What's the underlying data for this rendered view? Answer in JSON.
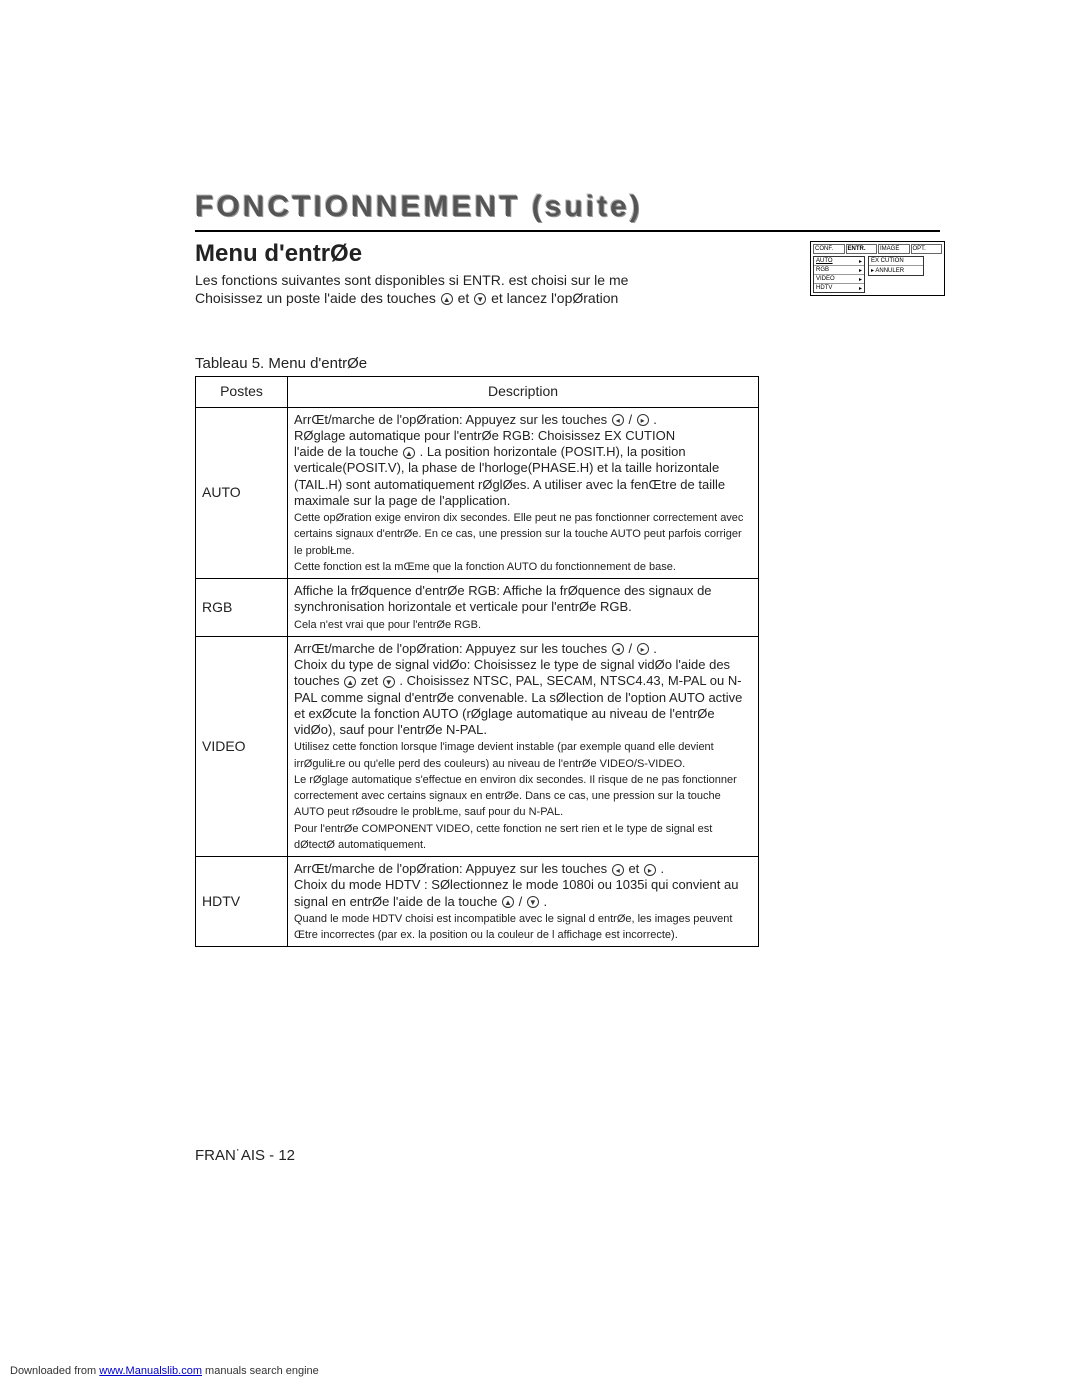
{
  "title": "FONCTIONNEMENT (suite)",
  "section_title": "Menu d'entrØe",
  "intro_line1": "Les fonctions suivantes sont disponibles si ENTR. est choisi sur le me",
  "intro_line2a": "Choisissez un poste   l'aide des touches ",
  "intro_line2b": " et ",
  "intro_line2c": " et lancez l'opØration",
  "table_caption": "Tableau 5. Menu d'entrØe",
  "table": {
    "header_postes": "Postes",
    "header_desc": "Description",
    "rows": [
      {
        "poste": "AUTO",
        "p1": "ArrŒt/marche de l'opØration:  Appuyez sur les touches ",
        "p1b": " / ",
        "p1c": ".",
        "p2": "RØglage automatique pour l'entrØe RGB:   Choisissez EX CUTION ",
        "p3": "l'aide de la touche ",
        "p3b": ". La position horizontale (POSIT.H), la position verticale(POSIT.V), la phase de l'horloge(PHASE.H) et la taille horizontale (TAIL.H) sont automatiquement rØglØes. A utiliser avec la fenŒtre de taille maximale sur la page de l'application.",
        "note1": "Cette opØration exige environ dix secondes. Elle peut ne pas fonctionner correctement avec certains signaux d'entrØe. En ce cas, une pression sur la touche AUTO peut parfois corriger le problŁme.",
        "note2": "Cette fonction est la mŒme que la fonction AUTO du fonctionnement de base."
      },
      {
        "poste": "RGB",
        "p1": "Affiche la frØquence d'entrØe RGB:  Affiche la frØquence des signaux de synchronisation horizontale et verticale pour l'entrØe RGB.",
        "note1": "Cela n'est vrai que pour l'entrØe RGB."
      },
      {
        "poste": "VIDEO",
        "p1": "ArrŒt/marche de l'opØration:  Appuyez sur les touches ",
        "p1b": " / ",
        "p1c": ".",
        "p2": "Choix du type de signal vidØo:    Choisissez le type de signal vidØo   l'aide des touches ",
        "p2b": " zet ",
        "p2c": ". Choisissez NTSC, PAL, SECAM, NTSC4.43, M-PAL ou N-PAL comme signal d'entrØe convenable. La sØlection de l'option AUTO active et exØcute la fonction AUTO (rØglage automatique au niveau de l'entrØe vidØo), sauf pour l'entrØe N-PAL.",
        "note1": "Utilisez cette fonction lorsque l'image devient instable (par exemple quand elle devient irrØguliŁre ou qu'elle perd des couleurs) au niveau de l'entrØe VIDEO/S-VIDEO.",
        "note2": "Le rØglage automatique s'effectue en environ dix secondes. Il risque de ne pas fonctionner correctement avec certains signaux en entrØe. Dans ce cas, une pression sur la touche AUTO peut rØsoudre le problŁme, sauf pour du N-PAL.",
        "note3": "Pour l'entrØe COMPONENT VIDEO, cette fonction ne sert   rien et le type de signal est dØtectØ automatiquement."
      },
      {
        "poste": "HDTV",
        "p1": "ArrŒt/marche de l'opØration:  Appuyez sur les touches ",
        "p1b": " et ",
        "p1c": " .",
        "p2": "Choix du mode HDTV :  SØlectionnez le mode 1080i ou 1035i qui convient au signal en entrØe   l'aide de la touche ",
        "p2b": " / ",
        "p2c": ".",
        "note1": "Quand le mode HDTV choisi est incompatible avec le signal d entrØe, les images peuvent Œtre incorrectes (par ex. la position ou la couleur de l affichage est incorrecte)."
      }
    ]
  },
  "footer_lang": "FRAN˙AIS - 12",
  "download_text1": "Downloaded from ",
  "download_link": "www.Manualslib.com",
  "download_text2": " manuals search engine",
  "osd": {
    "tabs": [
      "CONF.",
      "ENTR.",
      "IMAGE",
      "OPT."
    ],
    "active_tab": 1,
    "left": [
      "AUTO",
      "RGB",
      "VIDEO",
      "HDTV"
    ],
    "right": [
      "EX CUTION",
      "ANNULER"
    ]
  }
}
